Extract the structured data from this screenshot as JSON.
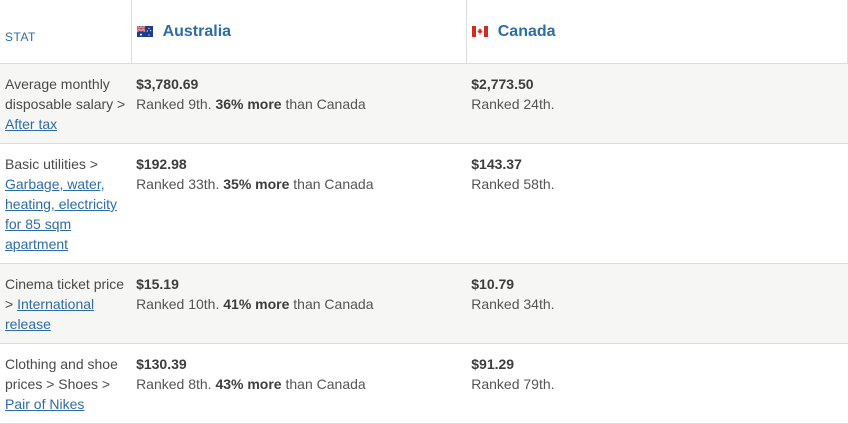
{
  "header": {
    "stat_label": "STAT",
    "countries": [
      {
        "name": "Australia",
        "flag": "australia-flag-icon"
      },
      {
        "name": "Canada",
        "flag": "canada-flag-icon"
      }
    ]
  },
  "colors": {
    "link": "#2e6da4",
    "row_alt": "#f6f6f4",
    "border": "#dcdcdc"
  },
  "rows": [
    {
      "stat_text": "Average monthly disposable salary >",
      "stat_link": "After tax",
      "a_value": "$3,780.69",
      "a_rank": "Ranked 9th.",
      "a_pct": "36% more",
      "a_than": "than Canada",
      "b_value": "$2,773.50",
      "b_rank": "Ranked 24th."
    },
    {
      "stat_text": "Basic utilities >",
      "stat_link": "Garbage, water, heating, electricity for 85 sqm apartment",
      "a_value": "$192.98",
      "a_rank": "Ranked 33th.",
      "a_pct": "35% more",
      "a_than": "than Canada",
      "b_value": "$143.37",
      "b_rank": "Ranked 58th."
    },
    {
      "stat_text": "Cinema ticket price >",
      "stat_link": "International release",
      "a_value": "$15.19",
      "a_rank": "Ranked 10th.",
      "a_pct": "41% more",
      "a_than": "than Canada",
      "b_value": "$10.79",
      "b_rank": "Ranked 34th."
    },
    {
      "stat_text": "Clothing and shoe prices > Shoes >",
      "stat_link": "Pair of Nikes",
      "a_value": "$130.39",
      "a_rank": "Ranked 8th.",
      "a_pct": "43% more",
      "a_than": "than Canada",
      "b_value": "$91.29",
      "b_rank": "Ranked 79th."
    }
  ]
}
